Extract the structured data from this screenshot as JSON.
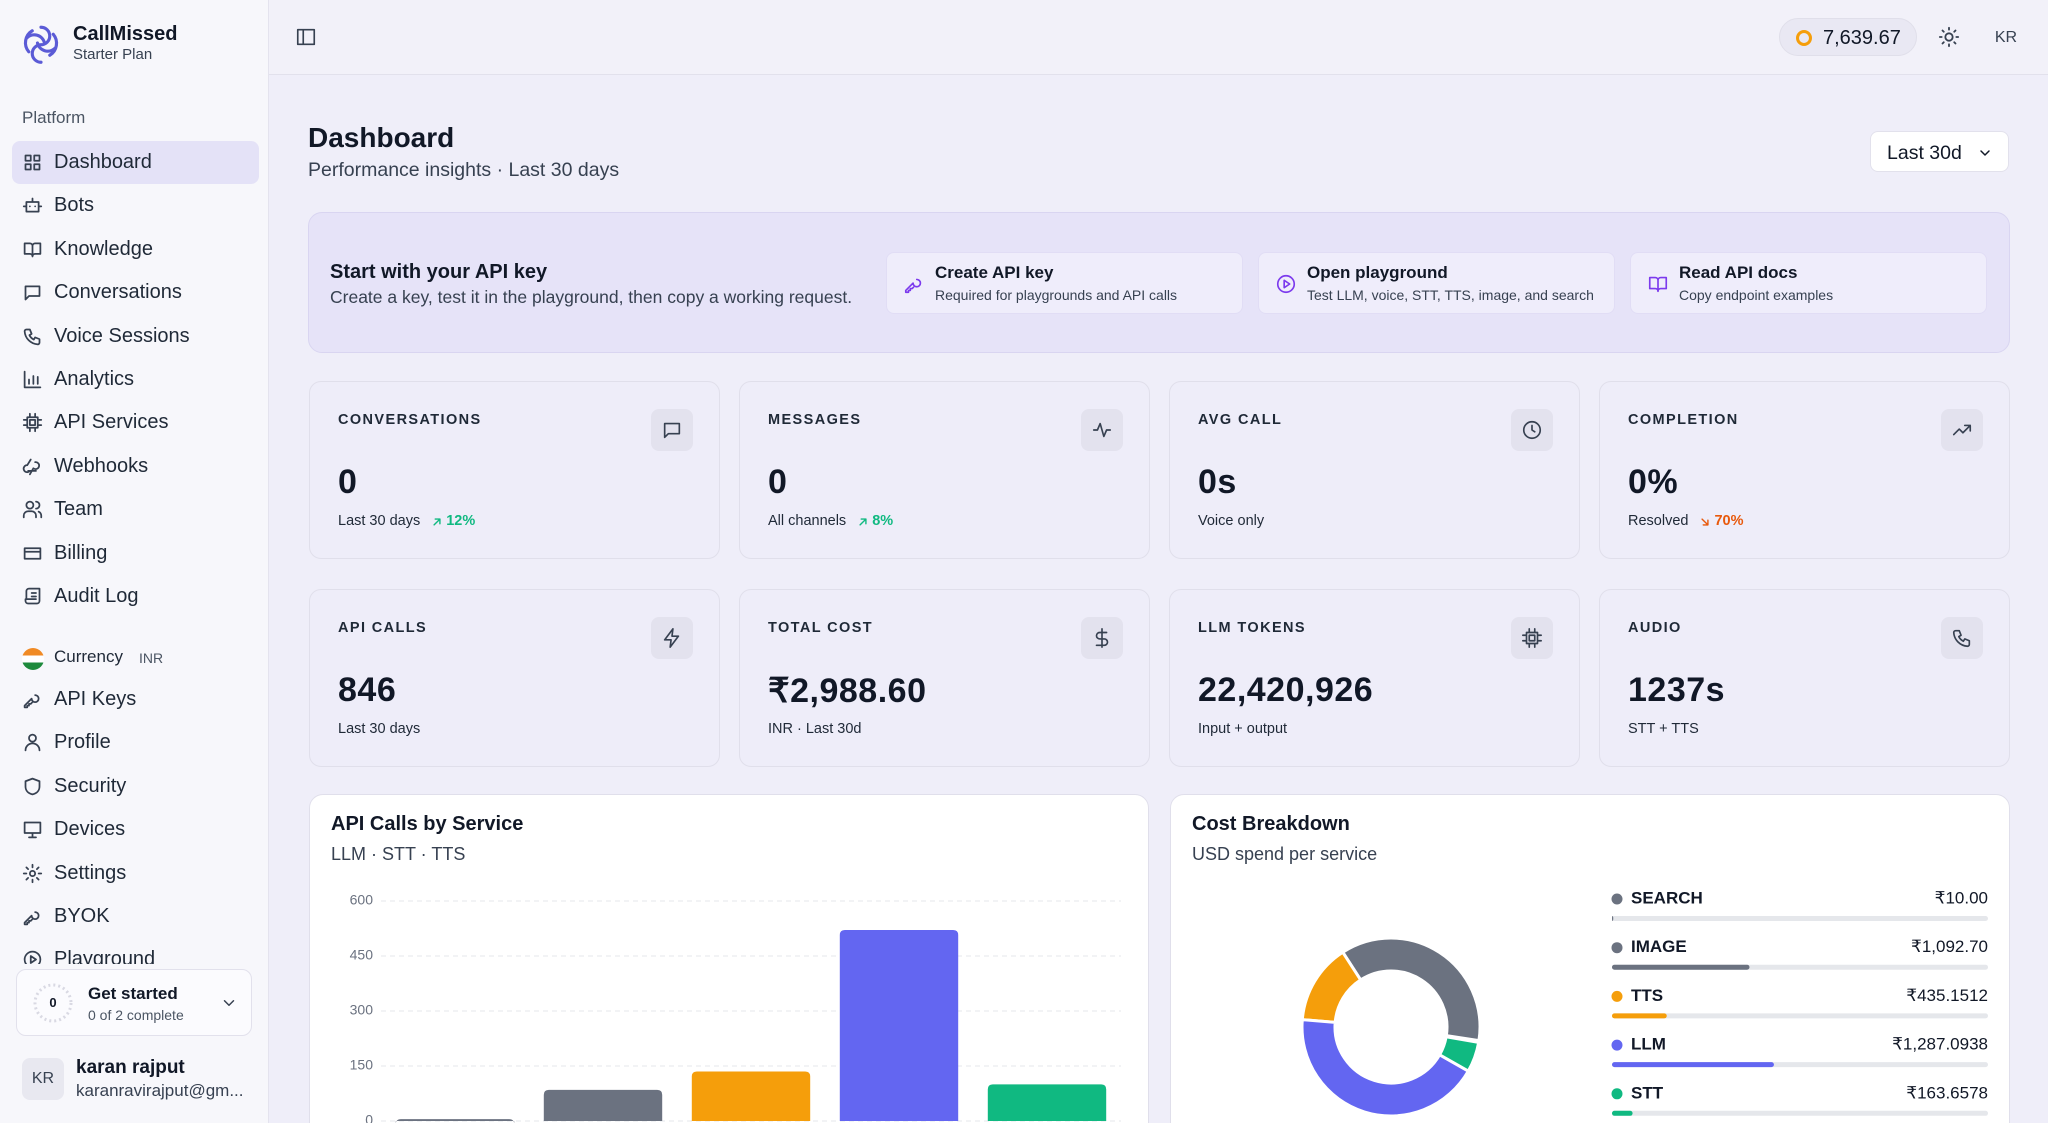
{
  "sidebar": {
    "brand": "CallMissed",
    "plan": "Starter Plan",
    "section": "Platform",
    "nav": [
      "Dashboard",
      "Bots",
      "Knowledge",
      "Conversations",
      "Voice Sessions",
      "Analytics",
      "API Services",
      "Webhooks",
      "Team",
      "Billing",
      "Audit Log"
    ],
    "currency_label": "Currency",
    "currency": "INR",
    "account_nav": [
      "API Keys",
      "Profile",
      "Security",
      "Devices",
      "Settings",
      "BYOK",
      "Playground"
    ],
    "get_started": {
      "count": "0",
      "title": "Get started",
      "progress": "0 of 2 complete"
    },
    "user": {
      "initials": "KR",
      "name": "karan rajput",
      "email": "karanravirajput@gm..."
    }
  },
  "topbar": {
    "credits": "7,639.67",
    "initials": "KR"
  },
  "header": {
    "title": "Dashboard",
    "subtitle": "Performance insights · Last 30 days",
    "range": "Last 30d"
  },
  "banner": {
    "title": "Start with your API key",
    "text": "Create a key, test it in the playground, then copy a working request.",
    "actions": [
      {
        "title": "Create API key",
        "desc": "Required for playgrounds and API calls"
      },
      {
        "title": "Open playground",
        "desc": "Test LLM, voice, STT, TTS, image, and search"
      },
      {
        "title": "Read API docs",
        "desc": "Copy endpoint examples"
      }
    ]
  },
  "stats": [
    {
      "label": "CONVERSATIONS",
      "value": "0",
      "note": "Last 30 days",
      "trend": {
        "text": "12%",
        "direction": "up"
      }
    },
    {
      "label": "MESSAGES",
      "value": "0",
      "note": "All channels",
      "trend": {
        "text": "8%",
        "direction": "up"
      }
    },
    {
      "label": "AVG CALL",
      "value": "0s",
      "note": "Voice only"
    },
    {
      "label": "COMPLETION",
      "value": "0%",
      "note": "Resolved",
      "trend": {
        "text": "70%",
        "direction": "down"
      }
    },
    {
      "label": "API CALLS",
      "value": "846",
      "note": "Last 30 days"
    },
    {
      "label": "TOTAL COST",
      "value": "₹2,988.60",
      "note": "INR · Last 30d"
    },
    {
      "label": "LLM TOKENS",
      "value": "22,420,926",
      "note": "Input + output"
    },
    {
      "label": "AUDIO",
      "value": "1237s",
      "note": "STT + TTS"
    }
  ],
  "chart_data": [
    {
      "type": "bar",
      "title": "API Calls by Service",
      "subtitle": "LLM · STT · TTS",
      "categories": [
        null,
        null,
        null,
        null,
        null
      ],
      "values": [
        5,
        85,
        135,
        521,
        100
      ],
      "colors": [
        "#6b7280",
        "#6b7280",
        "#f59e0b",
        "#6366f1",
        "#10b981"
      ],
      "ylim": [
        0,
        600
      ],
      "yticks": [
        0,
        150,
        300,
        450,
        600
      ],
      "grid": true
    },
    {
      "type": "donut",
      "title": "Cost Breakdown",
      "subtitle": "USD spend per service",
      "categories": [
        "SEARCH",
        "IMAGE",
        "TTS",
        "LLM",
        "STT"
      ],
      "values": [
        10,
        1092.7,
        435.1512,
        1287.0938,
        163.6578
      ],
      "value_labels": [
        "₹10.00",
        "₹1,092.70",
        "₹435.1512",
        "₹1,287.0938",
        "₹163.6578"
      ],
      "colors": [
        "#6b7280",
        "#6b7280",
        "#f59e0b",
        "#6366f1",
        "#10b981"
      ]
    }
  ]
}
